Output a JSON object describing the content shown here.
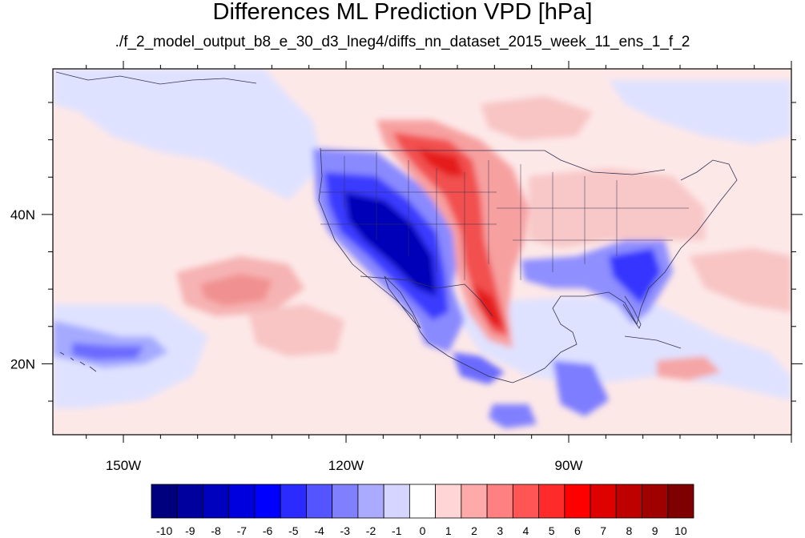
{
  "title": "Differences ML Prediction VPD [hPa]",
  "subtitle": "./f_2_model_output_b8_e_30_d3_lneg4/diffs_nn_dataset_2015_week_11_ens_1_f_2",
  "map": {
    "lon_range": [
      -159.5,
      -60
    ],
    "lat_range": [
      10.5,
      59.5
    ],
    "lon_ticks": [
      {
        "value": -150,
        "label": "150W"
      },
      {
        "value": -120,
        "label": "120W"
      },
      {
        "value": -90,
        "label": "90W"
      }
    ],
    "lat_ticks": [
      {
        "value": 40,
        "label": "40N"
      },
      {
        "value": 20,
        "label": "20N"
      }
    ]
  },
  "colorbar": {
    "labels": [
      "-10",
      "-9",
      "-8",
      "-7",
      "-6",
      "-5",
      "-4",
      "-3",
      "-2",
      "-1",
      "0",
      "1",
      "2",
      "3",
      "4",
      "5",
      "6",
      "7",
      "8",
      "9",
      "10"
    ],
    "colors": [
      "#00007f",
      "#00009f",
      "#0000bf",
      "#0000df",
      "#0000ff",
      "#2b2bff",
      "#5555ff",
      "#8080ff",
      "#aaaaff",
      "#d5d5ff",
      "#ffffff",
      "#ffd5d5",
      "#ffaaaa",
      "#ff8080",
      "#ff5555",
      "#ff2b2b",
      "#ff0000",
      "#df0000",
      "#bf0000",
      "#9f0000",
      "#7f0000"
    ]
  }
}
